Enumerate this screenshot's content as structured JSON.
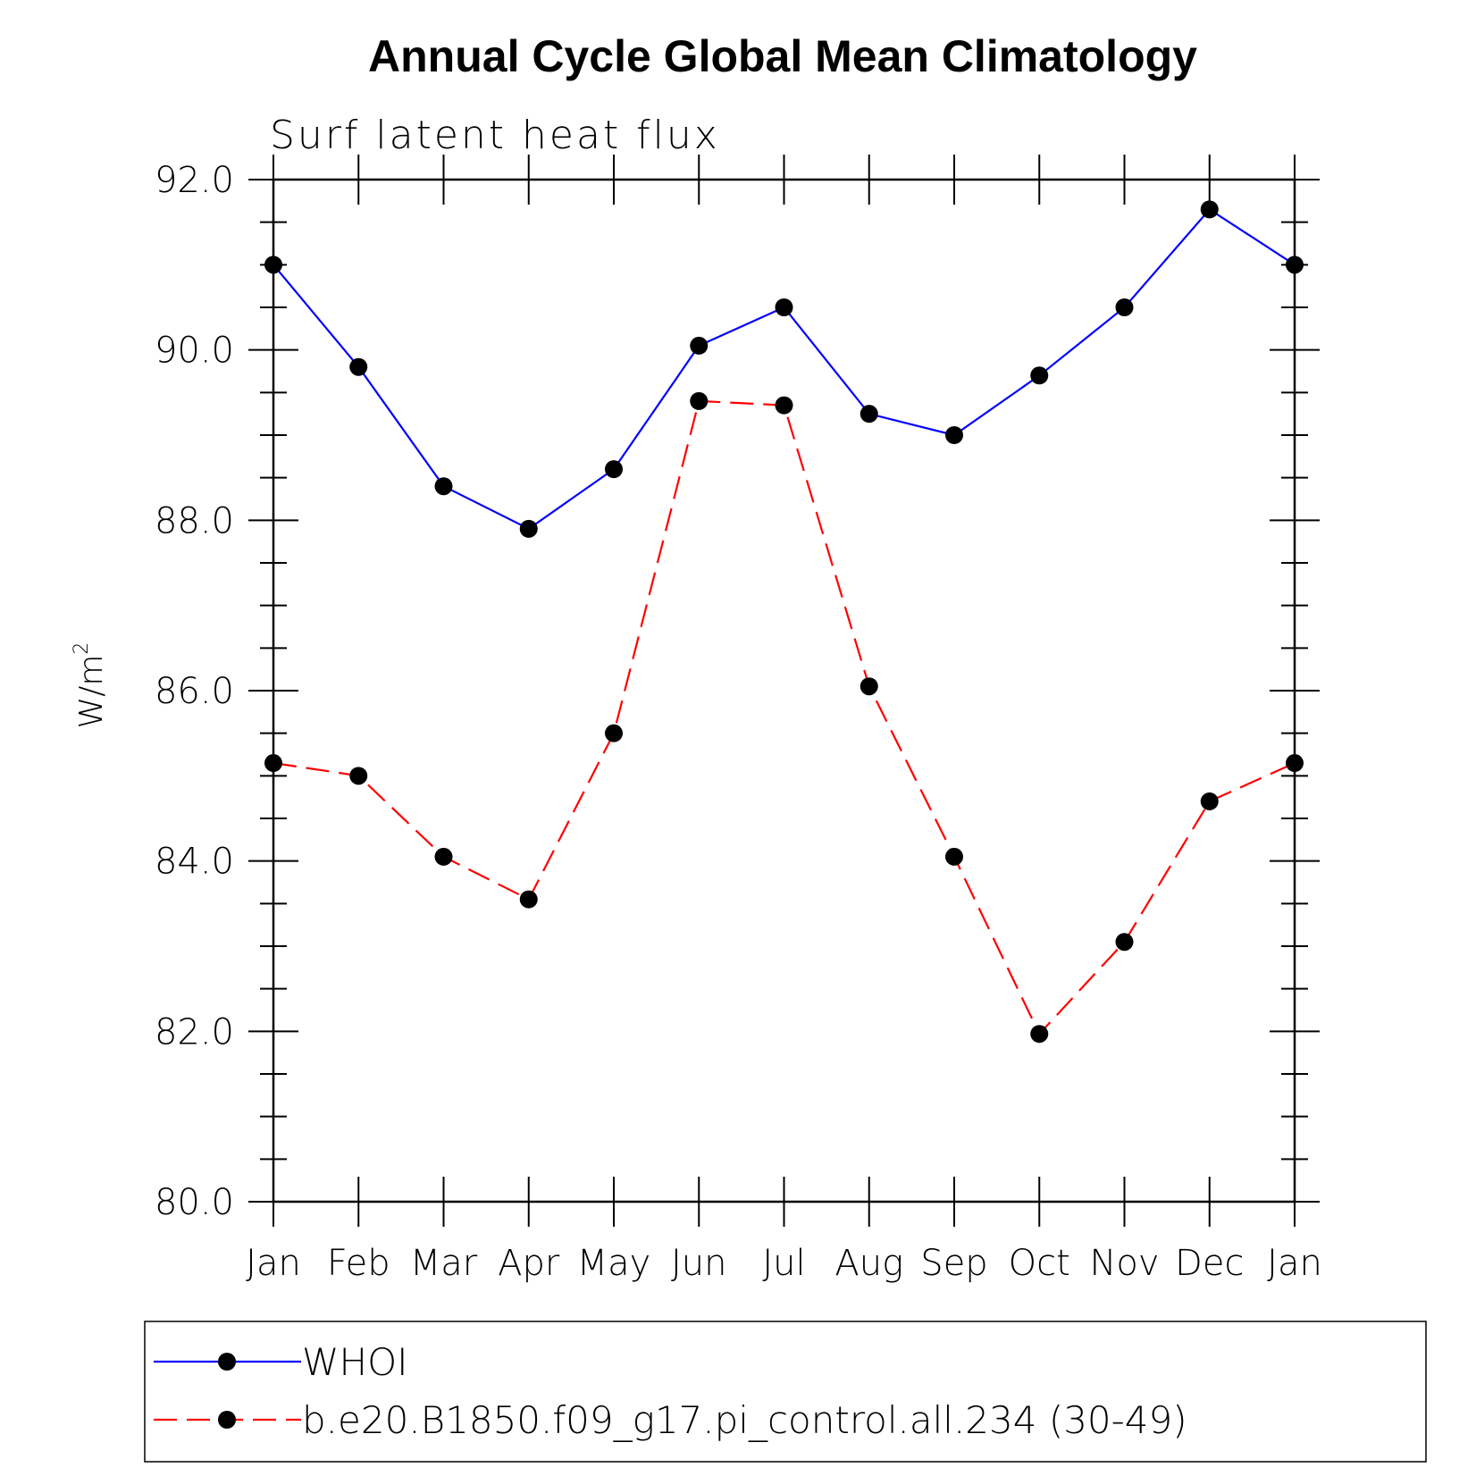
{
  "chart_data": {
    "type": "line",
    "title": "Annual Cycle Global Mean Climatology",
    "subtitle": "Surf latent heat flux",
    "ylabel": "W/m",
    "ylabel_superscript": "2",
    "ylim": [
      80.0,
      92.0
    ],
    "yticks": [
      "80.0",
      "82.0",
      "84.0",
      "86.0",
      "88.0",
      "90.0",
      "92.0"
    ],
    "categories": [
      "Jan",
      "Feb",
      "Mar",
      "Apr",
      "May",
      "Jun",
      "Jul",
      "Aug",
      "Sep",
      "Oct",
      "Nov",
      "Dec",
      "Jan"
    ],
    "series": [
      {
        "name": "WHOI",
        "color": "#0000ff",
        "dashed": false,
        "values": [
          91.0,
          89.8,
          88.4,
          87.9,
          88.6,
          90.05,
          90.5,
          89.25,
          89.0,
          89.7,
          90.5,
          91.65,
          91.0
        ]
      },
      {
        "name": "b.e20.B1850.f09_g17.pi_control.all.234 (30-49)",
        "color": "#ff0000",
        "dashed": true,
        "values": [
          85.15,
          85.0,
          84.05,
          83.55,
          85.5,
          89.4,
          89.35,
          86.05,
          84.05,
          81.97,
          83.05,
          84.7,
          85.15
        ]
      }
    ]
  }
}
